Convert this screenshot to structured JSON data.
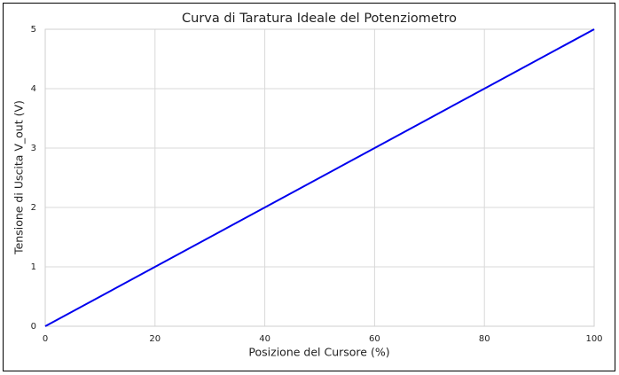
{
  "chart_data": {
    "type": "line",
    "title": "Curva di Taratura Ideale del Potenziometro",
    "x_label": "Posizione del Cursore (%)",
    "y_label": "Tensione di Uscita V_out (V)",
    "x": [
      0,
      20,
      40,
      60,
      80,
      100
    ],
    "series": [
      {
        "color": "#0000ee",
        "values": [
          0,
          1,
          2,
          3,
          4,
          5
        ]
      }
    ],
    "xlim": [
      0,
      100
    ],
    "xticks": [
      0,
      20,
      40,
      60,
      80,
      100
    ],
    "ylim": [
      0,
      5
    ],
    "yticks": [
      0,
      1,
      2,
      3,
      4,
      5
    ],
    "grid": true
  }
}
